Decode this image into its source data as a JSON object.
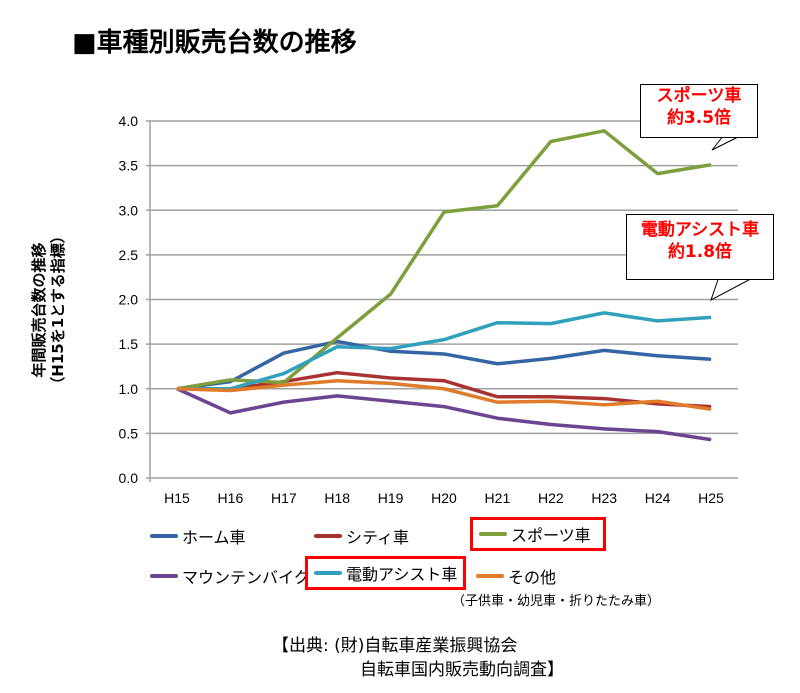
{
  "title": "■車種別販売台数の推移",
  "chart_data": {
    "type": "line",
    "title": "車種別販売台数の推移",
    "ylabel": "年間販売台数の推移（H15を1とする指標）",
    "ylabel_lines": [
      "年間販売台数の推移",
      "（H15を1とする指標）"
    ],
    "xlabel": "",
    "ylim": [
      0,
      4.0
    ],
    "yticks": [
      "0.0",
      "0.5",
      "1.0",
      "1.5",
      "2.0",
      "2.5",
      "3.0",
      "3.5",
      "4.0"
    ],
    "categories": [
      "H15",
      "H16",
      "H17",
      "H18",
      "H19",
      "H20",
      "H21",
      "H22",
      "H23",
      "H24",
      "H25"
    ],
    "grid": true,
    "legend_position": "bottom",
    "series": [
      {
        "name": "ホーム車",
        "color": "#3465a4",
        "values": [
          1.0,
          1.08,
          1.4,
          1.53,
          1.42,
          1.39,
          1.28,
          1.34,
          1.43,
          1.37,
          1.33
        ]
      },
      {
        "name": "シティ車",
        "color": "#a83232",
        "values": [
          1.0,
          1.0,
          1.08,
          1.18,
          1.12,
          1.09,
          0.91,
          0.91,
          0.89,
          0.83,
          0.8
        ]
      },
      {
        "name": "スポーツ車",
        "color": "#7da03c",
        "values": [
          1.0,
          1.1,
          1.07,
          1.57,
          2.06,
          2.98,
          3.05,
          3.77,
          3.89,
          3.41,
          3.51
        ]
      },
      {
        "name": "マウンテンバイク",
        "color": "#6b4592",
        "values": [
          1.0,
          0.73,
          0.85,
          0.92,
          0.86,
          0.8,
          0.67,
          0.6,
          0.55,
          0.52,
          0.43
        ]
      },
      {
        "name": "電動アシスト車",
        "color": "#31a0bd",
        "values": [
          1.0,
          1.0,
          1.17,
          1.47,
          1.45,
          1.55,
          1.74,
          1.73,
          1.85,
          1.76,
          1.8
        ]
      },
      {
        "name": "その他",
        "color": "#e07b2a",
        "values": [
          1.0,
          0.98,
          1.04,
          1.09,
          1.06,
          1.0,
          0.85,
          0.86,
          0.82,
          0.86,
          0.77
        ]
      }
    ],
    "annotations": [
      {
        "line1": "スポーツ車",
        "line2": "約3.5倍"
      },
      {
        "line1": "電動アシスト車",
        "line2": "約1.8倍"
      }
    ]
  },
  "other_note": "（子供車・幼児車・折りたたみ車）",
  "source": {
    "line1": "【出典: (財)自転車産業振興協会",
    "line2": "自転車国内販売動向調査】"
  }
}
